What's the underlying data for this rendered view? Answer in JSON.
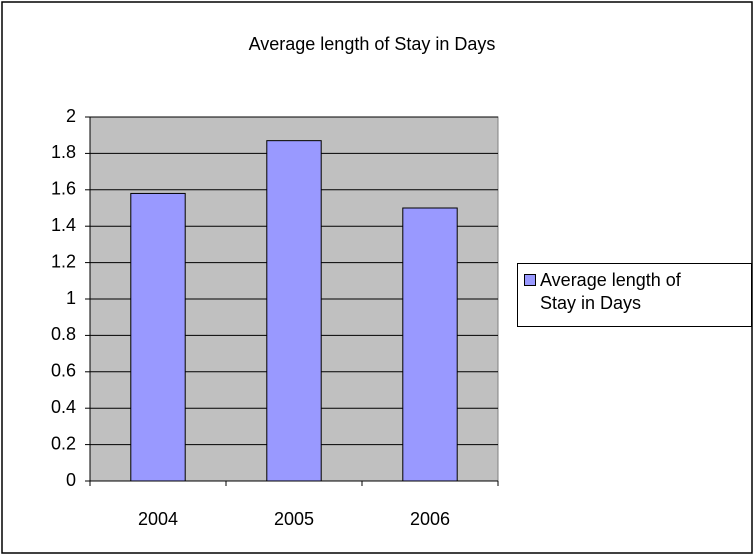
{
  "chart_data": {
    "type": "bar",
    "title": "Average length of Stay in Days",
    "categories": [
      "2004",
      "2005",
      "2006"
    ],
    "series": [
      {
        "name": "Average length of Stay in Days",
        "color": "#9999ff",
        "values": [
          1.58,
          1.87,
          1.5
        ]
      }
    ],
    "ylim": [
      0,
      2
    ],
    "yticks": [
      0,
      0.2,
      0.4,
      0.6,
      0.8,
      1,
      1.2,
      1.4,
      1.6,
      1.8,
      2
    ],
    "grid": true,
    "legend": "right",
    "plot_background": "#c0c0c0"
  }
}
